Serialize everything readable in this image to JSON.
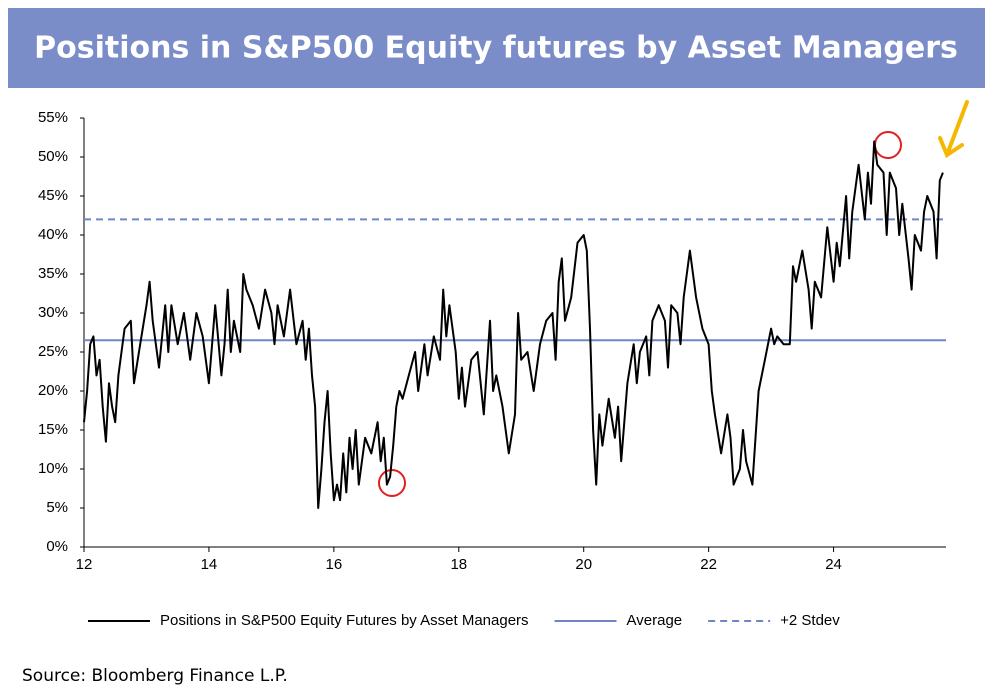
{
  "chart_data": {
    "type": "line",
    "title": "Positions in S&P500 Equity futures by Asset Managers",
    "source": "Source: Bloomberg Finance L.P.",
    "xlim": [
      12,
      25.8
    ],
    "xticks": [
      12,
      14,
      16,
      18,
      20,
      22,
      24
    ],
    "ylim": [
      0,
      55
    ],
    "yticks": [
      {
        "value": 0,
        "label": "0%"
      },
      {
        "value": 5,
        "label": "5%"
      },
      {
        "value": 10,
        "label": "10%"
      },
      {
        "value": 15,
        "label": "15%"
      },
      {
        "value": 20,
        "label": "20%"
      },
      {
        "value": 25,
        "label": "25%"
      },
      {
        "value": 30,
        "label": "30%"
      },
      {
        "value": 35,
        "label": "35%"
      },
      {
        "value": 40,
        "label": "40%"
      },
      {
        "value": 45,
        "label": "45%"
      },
      {
        "value": 50,
        "label": "50%"
      },
      {
        "value": 55,
        "label": "55%"
      }
    ],
    "legend": "bottom",
    "series": [
      {
        "name": "Positions in S&P500 Equity Futures by Asset Managers",
        "color": "#000000",
        "x": [
          12.0,
          12.05,
          12.1,
          12.15,
          12.2,
          12.25,
          12.3,
          12.35,
          12.4,
          12.45,
          12.5,
          12.55,
          12.65,
          12.75,
          12.8,
          12.9,
          13.0,
          13.05,
          13.1,
          13.2,
          13.3,
          13.35,
          13.4,
          13.5,
          13.6,
          13.7,
          13.8,
          13.9,
          14.0,
          14.05,
          14.1,
          14.2,
          14.25,
          14.3,
          14.35,
          14.4,
          14.5,
          14.55,
          14.6,
          14.7,
          14.8,
          14.9,
          15.0,
          15.05,
          15.1,
          15.2,
          15.3,
          15.4,
          15.5,
          15.55,
          15.6,
          15.65,
          15.7,
          15.75,
          15.8,
          15.85,
          15.9,
          15.95,
          16.0,
          16.05,
          16.1,
          16.15,
          16.2,
          16.25,
          16.3,
          16.35,
          16.4,
          16.5,
          16.6,
          16.7,
          16.75,
          16.8,
          16.85,
          16.9,
          16.95,
          17.0,
          17.05,
          17.1,
          17.2,
          17.3,
          17.35,
          17.45,
          17.5,
          17.6,
          17.7,
          17.75,
          17.8,
          17.85,
          17.95,
          18.0,
          18.05,
          18.1,
          18.2,
          18.3,
          18.4,
          18.5,
          18.55,
          18.6,
          18.7,
          18.8,
          18.9,
          18.95,
          19.0,
          19.1,
          19.2,
          19.3,
          19.4,
          19.5,
          19.55,
          19.6,
          19.65,
          19.7,
          19.8,
          19.9,
          20.0,
          20.05,
          20.1,
          20.15,
          20.2,
          20.25,
          20.3,
          20.4,
          20.5,
          20.55,
          20.6,
          20.7,
          20.8,
          20.85,
          20.9,
          21.0,
          21.05,
          21.1,
          21.2,
          21.3,
          21.35,
          21.4,
          21.5,
          21.55,
          21.6,
          21.7,
          21.75,
          21.8,
          21.9,
          22.0,
          22.05,
          22.1,
          22.2,
          22.3,
          22.35,
          22.4,
          22.5,
          22.55,
          22.6,
          22.7,
          22.8,
          22.9,
          23.0,
          23.05,
          23.1,
          23.2,
          23.3,
          23.35,
          23.4,
          23.5,
          23.6,
          23.65,
          23.7,
          23.8,
          23.9,
          24.0,
          24.05,
          24.1,
          24.2,
          24.25,
          24.3,
          24.4,
          24.5,
          24.55,
          24.6,
          24.65,
          24.7,
          24.8,
          24.85,
          24.9,
          25.0,
          25.05,
          25.1,
          25.2,
          25.25,
          25.3,
          25.4,
          25.45,
          25.5,
          25.6,
          25.65,
          25.7,
          25.75
        ],
        "values": [
          16,
          20,
          26,
          27,
          22,
          24,
          18,
          13.5,
          21,
          18,
          16,
          22,
          28,
          29,
          21,
          26,
          31,
          34,
          29,
          23,
          31,
          25,
          31,
          26,
          30,
          24,
          30,
          27,
          21,
          26,
          31,
          22,
          26,
          33,
          25,
          29,
          25,
          35,
          33,
          31,
          28,
          33,
          30,
          26,
          31,
          27,
          33,
          26,
          29,
          24,
          28,
          22,
          18,
          5,
          10,
          16,
          20,
          12,
          6,
          8,
          6,
          12,
          7,
          14,
          10,
          15,
          8,
          14,
          12,
          16,
          11,
          14,
          8,
          9,
          13,
          18,
          20,
          19,
          22,
          25,
          20,
          26,
          22,
          27,
          24,
          33,
          27,
          31,
          25,
          19,
          23,
          18,
          24,
          25,
          17,
          29,
          20,
          22,
          18,
          12,
          17,
          30,
          24,
          25,
          20,
          26,
          29,
          30,
          24,
          34,
          37,
          29,
          32,
          39,
          40,
          38,
          28,
          15,
          8,
          17,
          13,
          19,
          14,
          18,
          11,
          21,
          26,
          21,
          25,
          27,
          22,
          29,
          31,
          29,
          23,
          31,
          30,
          26,
          32,
          38,
          35,
          32,
          28,
          26,
          20,
          17,
          12,
          17,
          14,
          8,
          10,
          15,
          11,
          8,
          20,
          24,
          28,
          26,
          27,
          26,
          26,
          36,
          34,
          38,
          33,
          28,
          34,
          32,
          41,
          34,
          39,
          36,
          45,
          37,
          43,
          49,
          42,
          48,
          44,
          52,
          49,
          48,
          40,
          48,
          46,
          40,
          44,
          37,
          33,
          40,
          38,
          43,
          45,
          43,
          37,
          47,
          48
        ]
      }
    ],
    "reference_lines": [
      {
        "name": "Average",
        "value": 26.5,
        "color": "#6f86c6",
        "dashed": false
      },
      {
        "name": "+2 Stdev",
        "value": 42,
        "color": "#6f86c6",
        "dashed": true
      }
    ]
  }
}
